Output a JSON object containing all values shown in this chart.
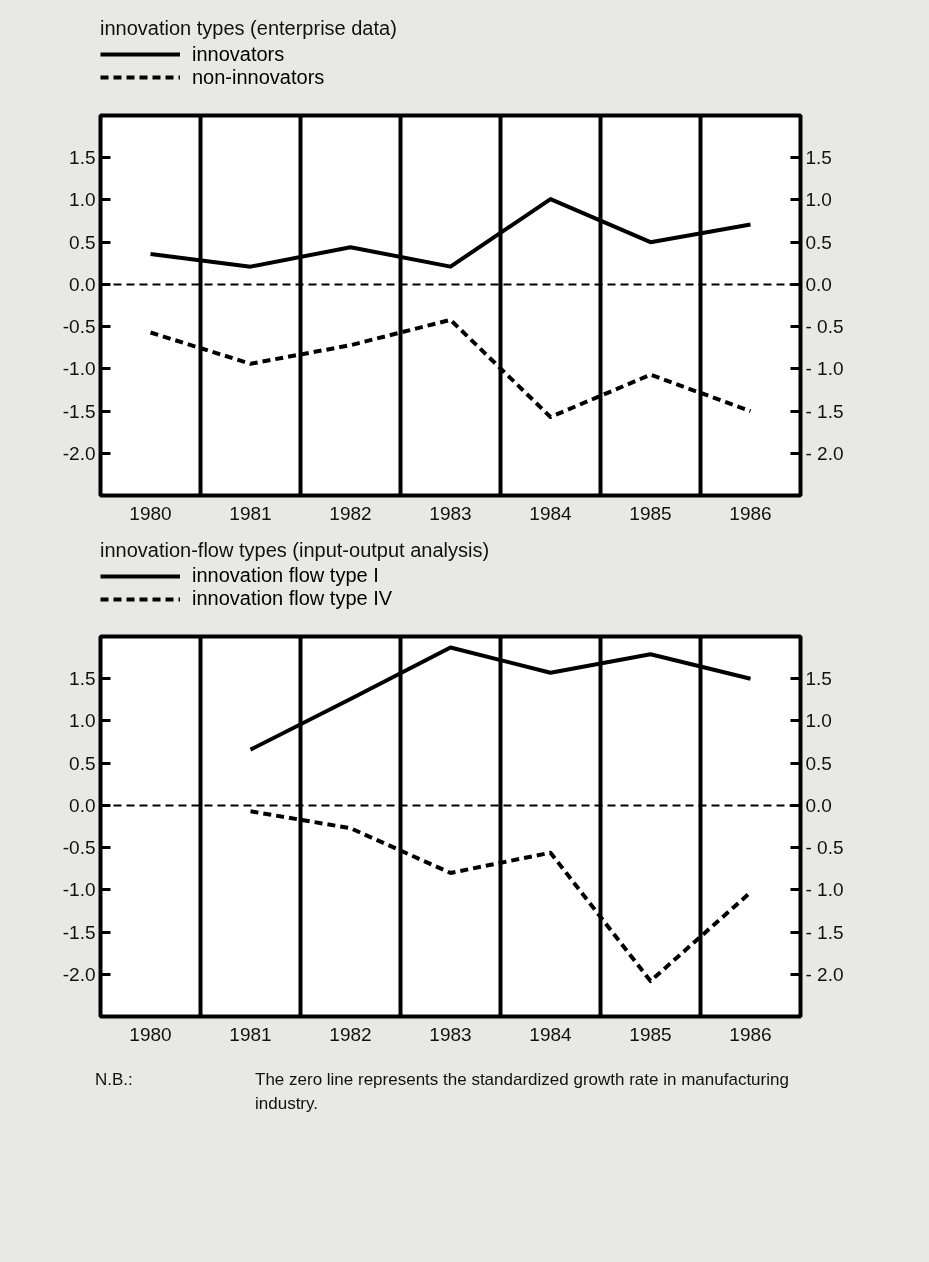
{
  "chart_data": [
    {
      "type": "line",
      "title": "innovation types (enterprise data)",
      "categories": [
        "1980",
        "1981",
        "1982",
        "1983",
        "1984",
        "1985",
        "1986"
      ],
      "series": [
        {
          "name": "innovators",
          "color": "#000000",
          "line_style": "solid",
          "values": [
            0.36,
            0.21,
            0.44,
            0.21,
            1.01,
            0.5,
            0.71
          ]
        },
        {
          "name": "non-innovators",
          "color": "#000000",
          "line_style": "dashed",
          "values": [
            -0.57,
            -0.94,
            -0.72,
            -0.42,
            -1.57,
            -1.07,
            -1.5
          ]
        }
      ],
      "ylim": [
        -2.5,
        2.0
      ],
      "yticks": [
        {
          "value": 1.5,
          "label": "1.5"
        },
        {
          "value": 1.0,
          "label": "1.0"
        },
        {
          "value": 0.5,
          "label": "0.5"
        },
        {
          "value": 0,
          "label": "0.0"
        },
        {
          "value": -0.5,
          "label": "-0.5"
        },
        {
          "value": -1.0,
          "label": "-1.0"
        },
        {
          "value": -1.5,
          "label": "-1.5"
        },
        {
          "value": -2.0,
          "label": "-2.0"
        }
      ],
      "y2lim": [
        -2.5,
        2.0
      ],
      "y2ticks": [
        {
          "value": 1.5,
          "label": "1.5"
        },
        {
          "value": 1.0,
          "label": "1.0"
        },
        {
          "value": 0.5,
          "label": "0.5"
        },
        {
          "value": 0,
          "label": "0.0"
        },
        {
          "value": -0.5,
          "label": "- 0.5"
        },
        {
          "value": -1.0,
          "label": "- 1.0"
        },
        {
          "value": -1.5,
          "label": "- 1.5"
        },
        {
          "value": -2.0,
          "label": "- 2.0"
        }
      ],
      "ref_lines": [
        {
          "axis": "y",
          "value": 0,
          "line_style": "dashed",
          "color": "#000000"
        }
      ],
      "grid": "x",
      "legend": "top left",
      "marker": "none"
    },
    {
      "type": "line",
      "title": "innovation-flow types (input-output analysis)",
      "categories": [
        "1980",
        "1981",
        "1982",
        "1983",
        "1984",
        "1985",
        "1986"
      ],
      "series": [
        {
          "name": "innovation flow type I",
          "color": "#000000",
          "line_style": "solid",
          "values": [
            null,
            0.66,
            1.26,
            1.87,
            1.57,
            1.79,
            1.5
          ]
        },
        {
          "name": "innovation flow type IV",
          "color": "#000000",
          "line_style": "dashed",
          "values": [
            null,
            -0.07,
            -0.27,
            -0.8,
            -0.56,
            -2.08,
            -1.03
          ]
        }
      ],
      "ylim": [
        -2.5,
        2.0
      ],
      "yticks": [
        {
          "value": 1.5,
          "label": "1.5"
        },
        {
          "value": 1.0,
          "label": "1.0"
        },
        {
          "value": 0.5,
          "label": "0.5"
        },
        {
          "value": 0,
          "label": "0.0"
        },
        {
          "value": -0.5,
          "label": "-0.5"
        },
        {
          "value": -1.0,
          "label": "-1.0"
        },
        {
          "value": -1.5,
          "label": "-1.5"
        },
        {
          "value": -2.0,
          "label": "-2.0"
        }
      ],
      "y2lim": [
        -2.5,
        2.0
      ],
      "y2ticks": [
        {
          "value": 1.5,
          "label": "1.5"
        },
        {
          "value": 1.0,
          "label": "1.0"
        },
        {
          "value": 0.5,
          "label": "0.5"
        },
        {
          "value": 0,
          "label": "0.0"
        },
        {
          "value": -0.5,
          "label": "- 0.5"
        },
        {
          "value": -1.0,
          "label": "- 1.0"
        },
        {
          "value": -1.5,
          "label": "- 1.5"
        },
        {
          "value": -2.0,
          "label": "- 2.0"
        }
      ],
      "ref_lines": [
        {
          "axis": "y",
          "value": 0,
          "line_style": "dashed",
          "color": "#000000"
        }
      ],
      "grid": "x",
      "legend": "top left",
      "marker": "none",
      "annotations": [
        "N.B.:",
        "The zero line represents the standardized growth rate in manufacturing industry."
      ]
    }
  ]
}
